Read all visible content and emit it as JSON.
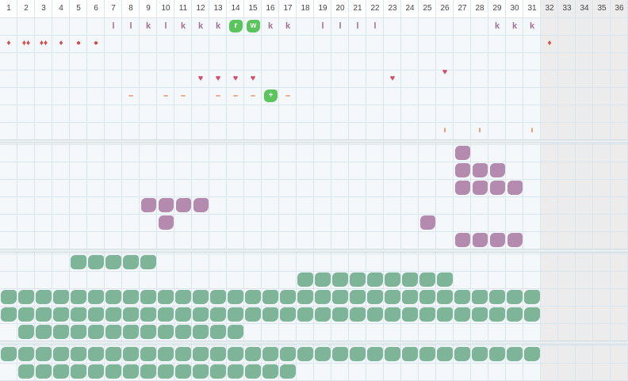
{
  "columns": [
    "1",
    "2",
    "3",
    "4",
    "5",
    "6",
    "7",
    "8",
    "9",
    "10",
    "11",
    "12",
    "13",
    "14",
    "15",
    "16",
    "17",
    "18",
    "19",
    "20",
    "21",
    "22",
    "23",
    "24",
    "25",
    "26",
    "27",
    "28",
    "29",
    "30",
    "31",
    "32",
    "33",
    "34",
    "35",
    "36"
  ],
  "active_column_count": 31,
  "colors": {
    "green_tile": "#7eb498",
    "purple_tile": "#b48aae",
    "badge_green": "#5cc45c",
    "heart": "#d14f6a",
    "drop": "#d94b4b",
    "dash": "#e07a3a",
    "outside_month": "#ececec"
  },
  "section1": {
    "row_letters": [
      {
        "col": 7,
        "text": "l"
      },
      {
        "col": 8,
        "text": "l"
      },
      {
        "col": 9,
        "text": "k"
      },
      {
        "col": 10,
        "text": "l"
      },
      {
        "col": 11,
        "text": "k"
      },
      {
        "col": 12,
        "text": "k"
      },
      {
        "col": 13,
        "text": "k"
      },
      {
        "col": 14,
        "text": "r",
        "badge": true
      },
      {
        "col": 15,
        "text": "w",
        "badge": true
      },
      {
        "col": 16,
        "text": "k"
      },
      {
        "col": 17,
        "text": "k"
      },
      {
        "col": 19,
        "text": "l"
      },
      {
        "col": 20,
        "text": "l"
      },
      {
        "col": 21,
        "text": "l"
      },
      {
        "col": 22,
        "text": "l"
      },
      {
        "col": 29,
        "text": "k"
      },
      {
        "col": 30,
        "text": "k"
      },
      {
        "col": 31,
        "text": "k"
      }
    ],
    "row_drops": [
      {
        "col": 1,
        "text": "♦"
      },
      {
        "col": 2,
        "text": "♦♦"
      },
      {
        "col": 3,
        "text": "♦♦"
      },
      {
        "col": 4,
        "text": "♦"
      },
      {
        "col": 5,
        "text": "●"
      },
      {
        "col": 6,
        "text": "●"
      },
      {
        "col": 32,
        "text": "♦"
      }
    ],
    "row_hearts": [
      {
        "col": 12,
        "text": "♥"
      },
      {
        "col": 13,
        "text": "♥"
      },
      {
        "col": 14,
        "text": "♥"
      },
      {
        "col": 15,
        "text": "♥"
      },
      {
        "col": 23,
        "text": "♥"
      },
      {
        "col": 26,
        "text": "♥",
        "offset": -8
      }
    ],
    "row_dashes": [
      {
        "col": 8,
        "text": "–"
      },
      {
        "col": 10,
        "text": "–"
      },
      {
        "col": 11,
        "text": "–"
      },
      {
        "col": 13,
        "text": "–"
      },
      {
        "col": 14,
        "text": "–"
      },
      {
        "col": 15,
        "text": "–"
      },
      {
        "col": 16,
        "text": "+",
        "badge": true
      },
      {
        "col": 17,
        "text": "–"
      }
    ],
    "row_ticks": [
      {
        "col": 26,
        "text": "ı"
      },
      {
        "col": 28,
        "text": "ı"
      },
      {
        "col": 31,
        "text": "ı"
      }
    ]
  },
  "section2": {
    "purple_tiles": [
      [
        27,
        0
      ],
      [
        27,
        1
      ],
      [
        28,
        1
      ],
      [
        29,
        1
      ],
      [
        27,
        2
      ],
      [
        28,
        2
      ],
      [
        29,
        2
      ],
      [
        30,
        2
      ],
      [
        9,
        3
      ],
      [
        10,
        3
      ],
      [
        11,
        3
      ],
      [
        12,
        3
      ],
      [
        10,
        4
      ],
      [
        25,
        4
      ],
      [
        27,
        5
      ],
      [
        28,
        5
      ],
      [
        29,
        5
      ],
      [
        30,
        5
      ]
    ]
  },
  "section3": {
    "rows": [
      {
        "from": 5,
        "to": 9
      },
      {
        "from": 18,
        "to": 26
      },
      {
        "from": 1,
        "to": 31
      },
      {
        "from": 1,
        "to": 31
      },
      {
        "from": 2,
        "to": 14
      }
    ]
  },
  "section4": {
    "rows": [
      {
        "from": 1,
        "to": 31
      },
      {
        "from": 2,
        "to": 17
      }
    ]
  }
}
